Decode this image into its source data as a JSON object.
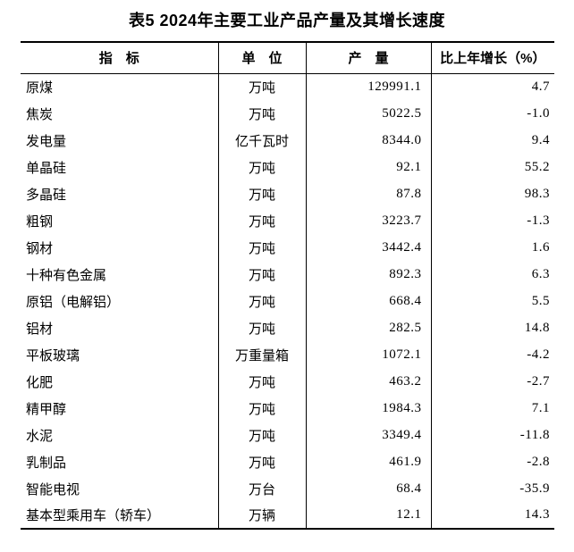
{
  "title": "表5 2024年主要工业产品产量及其增长速度",
  "colors": {
    "background": "#ffffff",
    "text": "#000000",
    "border": "#000000"
  },
  "table": {
    "headers": [
      "指　标",
      "单　位",
      "产　量",
      "比上年增长（%）"
    ],
    "rows": [
      {
        "indicator": "原煤",
        "unit": "万吨",
        "output": "129991.1",
        "growth": "4.7"
      },
      {
        "indicator": "焦炭",
        "unit": "万吨",
        "output": "5022.5",
        "growth": "-1.0"
      },
      {
        "indicator": "发电量",
        "unit": "亿千瓦时",
        "output": "8344.0",
        "growth": "9.4"
      },
      {
        "indicator": "单晶硅",
        "unit": "万吨",
        "output": "92.1",
        "growth": "55.2"
      },
      {
        "indicator": "多晶硅",
        "unit": "万吨",
        "output": "87.8",
        "growth": "98.3"
      },
      {
        "indicator": "粗钢",
        "unit": "万吨",
        "output": "3223.7",
        "growth": "-1.3"
      },
      {
        "indicator": "钢材",
        "unit": "万吨",
        "output": "3442.4",
        "growth": "1.6"
      },
      {
        "indicator": "十种有色金属",
        "unit": "万吨",
        "output": "892.3",
        "growth": "6.3"
      },
      {
        "indicator": "原铝（电解铝）",
        "unit": "万吨",
        "output": "668.4",
        "growth": "5.5"
      },
      {
        "indicator": "铝材",
        "unit": "万吨",
        "output": "282.5",
        "growth": "14.8"
      },
      {
        "indicator": "平板玻璃",
        "unit": "万重量箱",
        "output": "1072.1",
        "growth": "-4.2"
      },
      {
        "indicator": "化肥",
        "unit": "万吨",
        "output": "463.2",
        "growth": "-2.7"
      },
      {
        "indicator": "精甲醇",
        "unit": "万吨",
        "output": "1984.3",
        "growth": "7.1"
      },
      {
        "indicator": "水泥",
        "unit": "万吨",
        "output": "3349.4",
        "growth": "-11.8"
      },
      {
        "indicator": "乳制品",
        "unit": "万吨",
        "output": "461.9",
        "growth": "-2.8"
      },
      {
        "indicator": "智能电视",
        "unit": "万台",
        "output": "68.4",
        "growth": "-35.9"
      },
      {
        "indicator": "基本型乘用车（轿车）",
        "unit": "万辆",
        "output": "12.1",
        "growth": "14.3"
      }
    ]
  }
}
